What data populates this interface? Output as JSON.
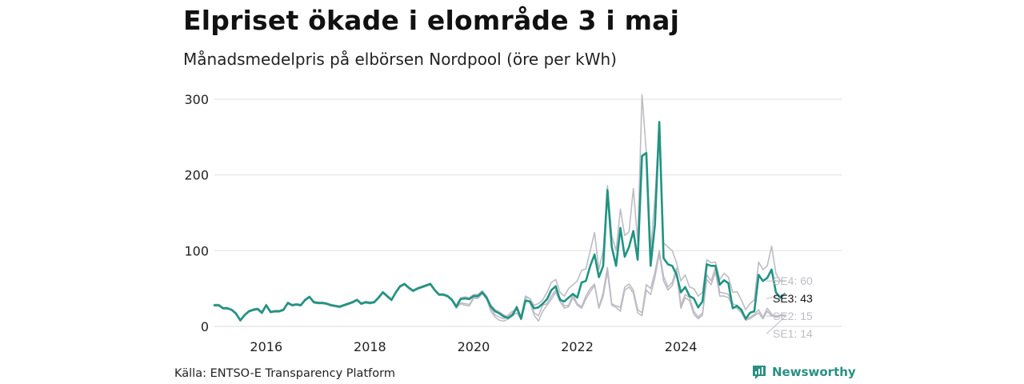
{
  "title": "Elpriset ökade i elområde 3 i maj",
  "subtitle": "Månadsmedelpris på elbörsen Nordpool (öre per kWh)",
  "source": "Källa: ENTSO-E Transparency Platform",
  "brand": {
    "name": "Newsworthy",
    "color": "#2a8f83",
    "icon": "newsworthy-logo-icon"
  },
  "colors": {
    "main": "#1f9483",
    "context": "#bdbcc5",
    "grid": "#e3e3e3"
  },
  "chart_data": {
    "type": "line",
    "title": "Elpriset ökade i elområde 3 i maj",
    "subtitle": "Månadsmedelpris på elbörsen Nordpool (öre per kWh)",
    "xlabel": "",
    "ylabel": "",
    "x_start": "2015-01",
    "x_range": [
      2015.0,
      2027.1
    ],
    "ylim": [
      0,
      310
    ],
    "yticks": [
      0,
      100,
      200,
      300
    ],
    "xticks": [
      2016,
      2018,
      2020,
      2022,
      2024
    ],
    "grid": true,
    "legend": "end-labels-right",
    "series": [
      {
        "name": "SE3",
        "end_label": "SE3: 43",
        "highlight": true,
        "values": [
          28,
          28,
          24,
          24,
          22,
          17,
          8,
          15,
          20,
          22,
          23,
          18,
          28,
          19,
          20,
          20,
          22,
          31,
          28,
          29,
          28,
          35,
          39,
          32,
          31,
          31,
          30,
          28,
          27,
          26,
          28,
          30,
          32,
          35,
          30,
          32,
          31,
          32,
          38,
          45,
          40,
          35,
          45,
          53,
          56,
          51,
          47,
          50,
          52,
          54,
          56,
          48,
          42,
          42,
          40,
          35,
          26,
          36,
          37,
          36,
          40,
          40,
          45,
          38,
          26,
          20,
          17,
          13,
          11,
          15,
          25,
          10,
          34,
          33,
          24,
          25,
          30,
          36,
          48,
          53,
          35,
          33,
          38,
          43,
          38,
          58,
          60,
          80,
          95,
          65,
          80,
          180,
          105,
          80,
          130,
          92,
          105,
          126,
          88,
          225,
          229,
          80,
          135,
          270,
          90,
          82,
          80,
          68,
          45,
          52,
          40,
          37,
          25,
          33,
          82,
          80,
          80,
          55,
          61,
          57,
          24,
          27,
          22,
          10,
          18,
          20,
          68,
          60,
          64,
          75,
          45,
          38,
          43
        ]
      },
      {
        "name": "SE4",
        "end_label": "SE4: 60",
        "highlight": false,
        "values": [
          29,
          29,
          25,
          25,
          22,
          18,
          9,
          16,
          21,
          23,
          24,
          20,
          29,
          20,
          21,
          21,
          23,
          32,
          29,
          30,
          29,
          36,
          40,
          33,
          32,
          32,
          31,
          29,
          28,
          27,
          29,
          31,
          33,
          36,
          31,
          33,
          32,
          33,
          39,
          46,
          41,
          36,
          46,
          54,
          57,
          52,
          48,
          51,
          53,
          55,
          57,
          49,
          43,
          43,
          41,
          36,
          28,
          38,
          39,
          38,
          42,
          42,
          47,
          40,
          28,
          22,
          19,
          15,
          13,
          17,
          27,
          12,
          38,
          37,
          28,
          30,
          35,
          45,
          58,
          62,
          45,
          40,
          50,
          55,
          60,
          74,
          76,
          100,
          124,
          75,
          100,
          186,
          120,
          100,
          155,
          120,
          125,
          182,
          112,
          306,
          230,
          100,
          170,
          268,
          110,
          105,
          100,
          84,
          60,
          68,
          52,
          50,
          40,
          45,
          88,
          84,
          85,
          62,
          70,
          65,
          45,
          46,
          35,
          22,
          30,
          35,
          85,
          75,
          80,
          106,
          70,
          60,
          60
        ]
      },
      {
        "name": "SE2",
        "end_label": "SE2: 15",
        "highlight": false,
        "values": [
          27,
          27,
          23,
          23,
          21,
          16,
          7,
          14,
          19,
          21,
          22,
          17,
          27,
          18,
          19,
          19,
          21,
          30,
          27,
          28,
          27,
          34,
          38,
          31,
          30,
          30,
          29,
          27,
          26,
          25,
          27,
          29,
          31,
          34,
          29,
          31,
          30,
          31,
          37,
          44,
          39,
          34,
          44,
          52,
          55,
          50,
          46,
          49,
          51,
          53,
          55,
          47,
          41,
          41,
          39,
          34,
          24,
          31,
          30,
          29,
          38,
          38,
          44,
          37,
          24,
          15,
          12,
          10,
          15,
          20,
          22,
          14,
          40,
          37,
          18,
          14,
          28,
          30,
          40,
          48,
          38,
          27,
          28,
          42,
          30,
          26,
          40,
          50,
          56,
          25,
          45,
          78,
          30,
          27,
          25,
          52,
          56,
          48,
          22,
          18,
          55,
          50,
          72,
          100,
          66,
          52,
          58,
          77,
          28,
          42,
          38,
          20,
          12,
          18,
          68,
          60,
          78,
          45,
          44,
          42,
          30,
          28,
          20,
          10,
          12,
          16,
          22,
          12,
          24,
          16,
          12,
          15,
          15
        ]
      },
      {
        "name": "SE1",
        "end_label": "SE1: 14",
        "highlight": false,
        "values": [
          27,
          27,
          23,
          23,
          21,
          16,
          7,
          14,
          19,
          21,
          22,
          17,
          27,
          18,
          19,
          19,
          21,
          30,
          27,
          28,
          27,
          34,
          38,
          31,
          30,
          30,
          29,
          27,
          26,
          25,
          27,
          29,
          31,
          34,
          29,
          31,
          30,
          31,
          37,
          44,
          39,
          34,
          44,
          52,
          55,
          50,
          46,
          49,
          51,
          53,
          55,
          47,
          41,
          41,
          39,
          34,
          24,
          30,
          28,
          27,
          37,
          37,
          43,
          36,
          20,
          12,
          8,
          7,
          10,
          14,
          18,
          9,
          36,
          32,
          15,
          7,
          20,
          28,
          36,
          45,
          33,
          24,
          26,
          38,
          28,
          24,
          36,
          46,
          54,
          24,
          40,
          72,
          28,
          25,
          20,
          48,
          52,
          44,
          18,
          14,
          48,
          42,
          65,
          96,
          60,
          48,
          54,
          72,
          24,
          38,
          34,
          16,
          10,
          15,
          62,
          55,
          72,
          40,
          40,
          38,
          26,
          24,
          18,
          8,
          10,
          14,
          18,
          10,
          20,
          14,
          12,
          14,
          14
        ]
      }
    ]
  }
}
